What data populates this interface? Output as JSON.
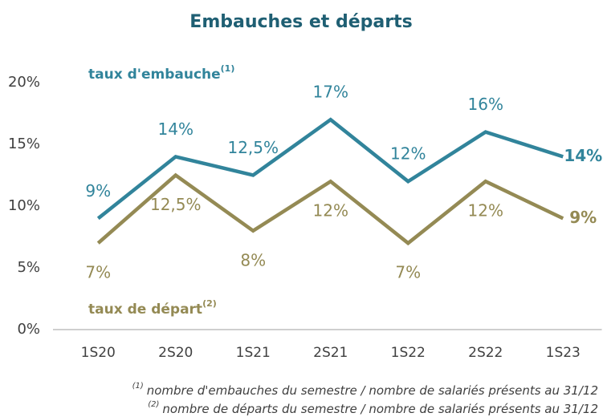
{
  "chart_data": {
    "type": "line",
    "title": "Embauches et départs",
    "categories": [
      "1S20",
      "2S20",
      "1S21",
      "2S21",
      "1S22",
      "2S22",
      "1S23"
    ],
    "series": [
      {
        "name": "taux d'embauche",
        "name_sup": "(1)",
        "color": "#31849b",
        "values": [
          9,
          14,
          12.5,
          17,
          12,
          16,
          14
        ],
        "value_labels": [
          "9%",
          "14%",
          "12,5%",
          "17%",
          "12%",
          "16%",
          "14%"
        ]
      },
      {
        "name": "taux de départ",
        "name_sup": "(2)",
        "color": "#948a54",
        "values": [
          7,
          12.5,
          8,
          12,
          7,
          12,
          9
        ],
        "value_labels": [
          "7%",
          "12,5%",
          "8%",
          "12%",
          "7%",
          "12%",
          "9%"
        ]
      }
    ],
    "ylim": [
      0,
      20
    ],
    "yticks": [
      {
        "value": 0,
        "label": "0%"
      },
      {
        "value": 5,
        "label": "5%"
      },
      {
        "value": 10,
        "label": "10%"
      },
      {
        "value": 15,
        "label": "15%"
      },
      {
        "value": 20,
        "label": "20%"
      }
    ],
    "grid": false,
    "footnotes": [
      {
        "marker": "(1)",
        "text": "nombre d'embauches du semestre / nombre de salariés présents au 31/12"
      },
      {
        "marker": "(2)",
        "text": "nombre de départs du semestre / nombre de salariés présents au 31/12"
      }
    ]
  }
}
